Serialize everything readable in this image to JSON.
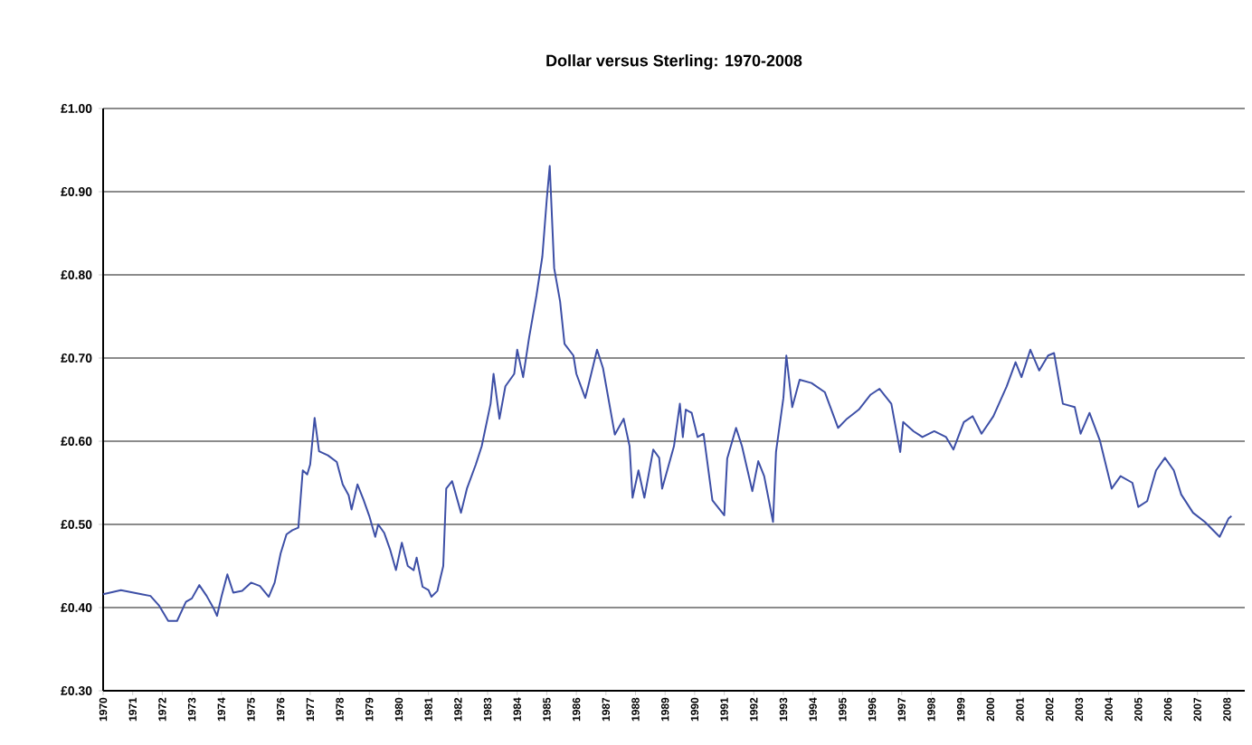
{
  "chart_data": {
    "type": "line",
    "title": "Dollar versus Sterling: 1970-2008",
    "x": [
      1970.0,
      1970.6,
      1971.3,
      1971.6,
      1971.9,
      1972.2,
      1972.5,
      1972.8,
      1973.0,
      1973.25,
      1973.5,
      1973.75,
      1973.85,
      1974.0,
      1974.2,
      1974.4,
      1974.7,
      1975.0,
      1975.3,
      1975.6,
      1975.8,
      1976.0,
      1976.2,
      1976.4,
      1976.6,
      1976.75,
      1976.9,
      1977.0,
      1977.15,
      1977.3,
      1977.6,
      1977.9,
      1978.1,
      1978.3,
      1978.4,
      1978.6,
      1978.8,
      1979.0,
      1979.2,
      1979.3,
      1979.5,
      1979.7,
      1979.9,
      1980.1,
      1980.3,
      1980.5,
      1980.6,
      1980.8,
      1981.0,
      1981.1,
      1981.3,
      1981.5,
      1981.6,
      1981.8,
      1982.1,
      1982.3,
      1982.6,
      1982.8,
      1983.1,
      1983.2,
      1983.4,
      1983.6,
      1983.9,
      1984.0,
      1984.2,
      1984.4,
      1984.65,
      1984.85,
      1985.0,
      1985.1,
      1985.25,
      1985.45,
      1985.6,
      1985.9,
      1986.0,
      1986.3,
      1986.4,
      1986.7,
      1986.9,
      1987.3,
      1987.6,
      1987.8,
      1987.9,
      1988.1,
      1988.3,
      1988.6,
      1988.8,
      1988.9,
      1989.3,
      1989.5,
      1989.6,
      1989.7,
      1989.9,
      1990.1,
      1990.3,
      1990.6,
      1991.0,
      1991.1,
      1991.4,
      1991.6,
      1991.95,
      1992.15,
      1992.35,
      1992.65,
      1992.75,
      1993.0,
      1993.1,
      1993.3,
      1993.55,
      1993.95,
      1994.4,
      1994.85,
      1995.15,
      1995.55,
      1995.95,
      1996.25,
      1996.65,
      1996.95,
      1997.05,
      1997.4,
      1997.7,
      1998.1,
      1998.5,
      1998.75,
      1999.1,
      1999.4,
      1999.7,
      2000.1,
      2000.55,
      2000.85,
      2001.05,
      2001.35,
      2001.65,
      2001.95,
      2002.15,
      2002.45,
      2002.85,
      2003.05,
      2003.35,
      2003.7,
      2004.1,
      2004.4,
      2004.8,
      2005.0,
      2005.3,
      2005.6,
      2005.9,
      2006.2,
      2006.45,
      2006.85,
      2007.25,
      2007.75,
      2008.05,
      2008.15
    ],
    "series": [
      {
        "color": "#3d4fa6",
        "values": [
          0.416,
          0.421,
          0.416,
          0.414,
          0.402,
          0.384,
          0.384,
          0.407,
          0.411,
          0.427,
          0.414,
          0.398,
          0.39,
          0.413,
          0.44,
          0.418,
          0.42,
          0.43,
          0.426,
          0.413,
          0.43,
          0.465,
          0.488,
          0.493,
          0.496,
          0.565,
          0.56,
          0.572,
          0.628,
          0.588,
          0.583,
          0.575,
          0.548,
          0.535,
          0.518,
          0.548,
          0.53,
          0.51,
          0.485,
          0.5,
          0.49,
          0.47,
          0.445,
          0.478,
          0.45,
          0.445,
          0.46,
          0.425,
          0.421,
          0.413,
          0.42,
          0.45,
          0.543,
          0.552,
          0.514,
          0.543,
          0.572,
          0.594,
          0.645,
          0.681,
          0.627,
          0.666,
          0.681,
          0.71,
          0.677,
          0.724,
          0.775,
          0.822,
          0.891,
          0.931,
          0.808,
          0.768,
          0.717,
          0.703,
          0.681,
          0.652,
          0.666,
          0.71,
          0.688,
          0.608,
          0.627,
          0.594,
          0.532,
          0.565,
          0.532,
          0.59,
          0.58,
          0.543,
          0.594,
          0.645,
          0.605,
          0.638,
          0.634,
          0.605,
          0.609,
          0.529,
          0.511,
          0.579,
          0.616,
          0.594,
          0.54,
          0.576,
          0.558,
          0.503,
          0.587,
          0.652,
          0.703,
          0.641,
          0.674,
          0.67,
          0.659,
          0.616,
          0.627,
          0.638,
          0.656,
          0.663,
          0.645,
          0.587,
          0.623,
          0.612,
          0.605,
          0.612,
          0.605,
          0.59,
          0.623,
          0.63,
          0.609,
          0.63,
          0.666,
          0.695,
          0.677,
          0.71,
          0.685,
          0.703,
          0.706,
          0.645,
          0.641,
          0.609,
          0.634,
          0.601,
          0.543,
          0.558,
          0.55,
          0.521,
          0.528,
          0.565,
          0.58,
          0.565,
          0.536,
          0.514,
          0.503,
          0.485,
          0.507,
          0.51
        ]
      }
    ],
    "xlim": [
      1970,
      2008.6
    ],
    "xticks": [
      1970,
      1971,
      1972,
      1973,
      1974,
      1975,
      1976,
      1977,
      1978,
      1979,
      1980,
      1981,
      1982,
      1983,
      1984,
      1985,
      1986,
      1987,
      1988,
      1989,
      1990,
      1991,
      1992,
      1993,
      1994,
      1995,
      1996,
      1997,
      1998,
      1999,
      2000,
      2001,
      2002,
      2003,
      2004,
      2005,
      2006,
      2007,
      2008
    ],
    "ylim": [
      0.3,
      1.0
    ],
    "yticks": [
      {
        "value": 0.3,
        "label": "£0.30"
      },
      {
        "value": 0.4,
        "label": "£0.40"
      },
      {
        "value": 0.5,
        "label": "£0.50"
      },
      {
        "value": 0.6,
        "label": "£0.60"
      },
      {
        "value": 0.7,
        "label": "£0.70"
      },
      {
        "value": 0.8,
        "label": "£0.80"
      },
      {
        "value": 0.9,
        "label": "£0.90"
      },
      {
        "value": 1.0,
        "label": "£1.00"
      }
    ],
    "grid": "y",
    "marker": "none",
    "line_style": "solid"
  }
}
